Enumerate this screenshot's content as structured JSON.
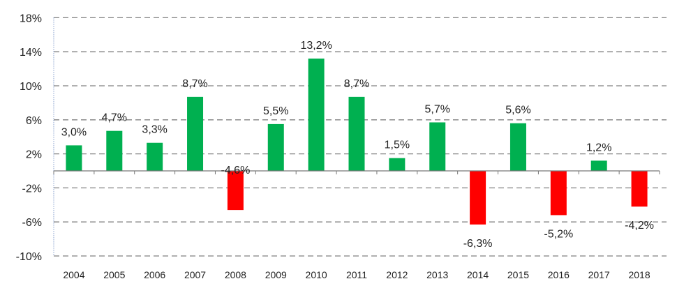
{
  "chart_data": {
    "type": "bar",
    "title": "",
    "xlabel": "",
    "ylabel": "",
    "categories": [
      "2004",
      "2005",
      "2006",
      "2007",
      "2008",
      "2009",
      "2010",
      "2011",
      "2012",
      "2013",
      "2014",
      "2015",
      "2016",
      "2017",
      "2018"
    ],
    "values": [
      3.0,
      4.7,
      3.3,
      8.7,
      -4.6,
      5.5,
      13.2,
      8.7,
      1.5,
      5.7,
      -6.3,
      5.6,
      -5.2,
      1.2,
      -4.2
    ],
    "value_labels": [
      "3,0%",
      "4,7%",
      "3,3%",
      "8,7%",
      "-4,6%",
      "5,5%",
      "13,2%",
      "8,7%",
      "1,5%",
      "5,7%",
      "-6,3%",
      "5,6%",
      "-5,2%",
      "1,2%",
      "-4,2%"
    ],
    "ylim": [
      -10,
      18
    ],
    "yticks": [
      18,
      14,
      10,
      6,
      2,
      -2,
      -6,
      -10
    ],
    "ytick_labels": [
      "18%",
      "14%",
      "10%",
      "6%",
      "2%",
      "-2%",
      "-6%",
      "-10%"
    ],
    "grid": true,
    "legend": "none",
    "colors": {
      "positive": "#00b050",
      "negative": "#ff0000",
      "grid": "#808080",
      "axis": "#4a6fb5"
    }
  }
}
